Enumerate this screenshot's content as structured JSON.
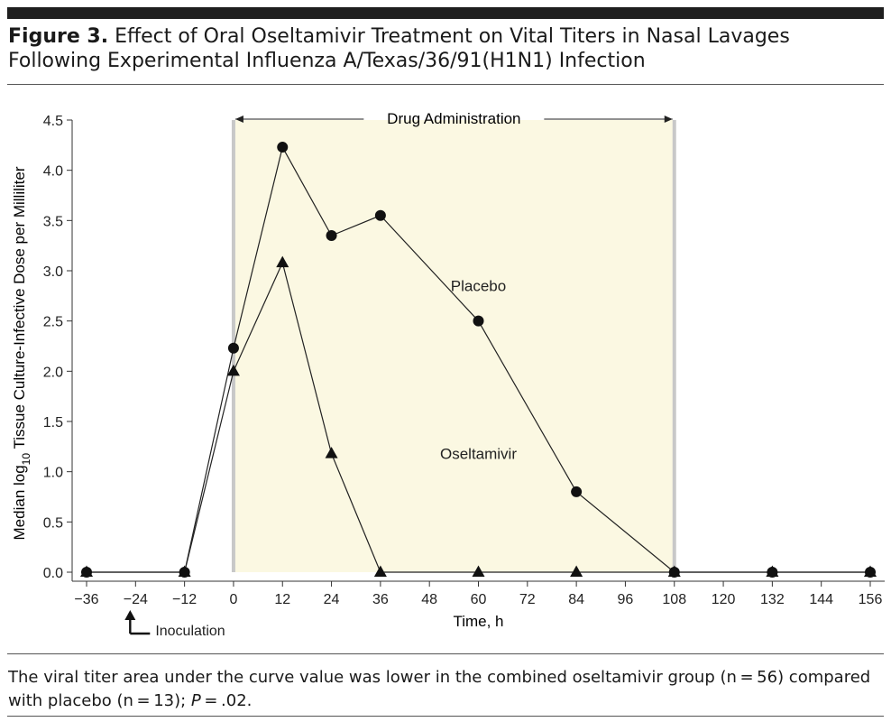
{
  "figure": {
    "label": "Figure 3.",
    "title": "Effect of Oral Oseltamivir Treatment on Vital Titers in Nasal Lavages Following Experimental Influenza A/Texas/36/91(H1N1) Infection",
    "caption_text": "The viral titer area under the curve value was lower in the combined oseltamivir group (n = 56) compared with placebo (n = 13); ",
    "caption_p": "P",
    "caption_tail": " = .02."
  },
  "chart_data": {
    "type": "line",
    "xlabel": "Time, h",
    "ylabel_prefix": "Median log",
    "ylabel_sub": "10",
    "ylabel_suffix": " Tissue Culture-Infective Dose per Milliliter",
    "xlim": [
      -36,
      156
    ],
    "ylim": [
      0,
      4.5
    ],
    "x_ticks": [
      -36,
      -24,
      -12,
      0,
      12,
      24,
      36,
      48,
      60,
      72,
      84,
      96,
      108,
      120,
      132,
      144,
      156
    ],
    "x_tick_labels": [
      "−36",
      "−24",
      "−12",
      "0",
      "12",
      "24",
      "36",
      "48",
      "60",
      "72",
      "84",
      "96",
      "108",
      "120",
      "132",
      "144",
      "156"
    ],
    "y_ticks": [
      0,
      0.5,
      1.0,
      1.5,
      2.0,
      2.5,
      3.0,
      3.5,
      4.0,
      4.5
    ],
    "y_tick_labels": [
      "0.0",
      "0.5",
      "1.0",
      "1.5",
      "2.0",
      "2.5",
      "3.0",
      "3.5",
      "4.0",
      "4.5"
    ],
    "shaded_region": {
      "x_start": 0,
      "x_end": 108,
      "color": "#fbf8e2",
      "border_color": "#c8c8c8",
      "label": "Drug Administration"
    },
    "annotation": {
      "label": "Inoculation",
      "x": -24
    },
    "series": [
      {
        "name": "Placebo",
        "marker": "circle",
        "label_at": [
          60,
          2.85
        ],
        "x": [
          -36,
          -12,
          0,
          12,
          24,
          36,
          60,
          84,
          108,
          132,
          156
        ],
        "y": [
          0,
          0,
          2.23,
          4.23,
          3.35,
          3.55,
          2.5,
          0.8,
          0,
          0,
          0
        ]
      },
      {
        "name": "Oseltamivir",
        "marker": "triangle",
        "label_at": [
          60,
          1.18
        ],
        "x": [
          -36,
          -12,
          0,
          12,
          24,
          36,
          60,
          84,
          108,
          132,
          156
        ],
        "y": [
          0,
          0,
          2.0,
          3.08,
          1.18,
          0,
          0,
          0,
          0,
          0,
          0
        ]
      }
    ]
  }
}
